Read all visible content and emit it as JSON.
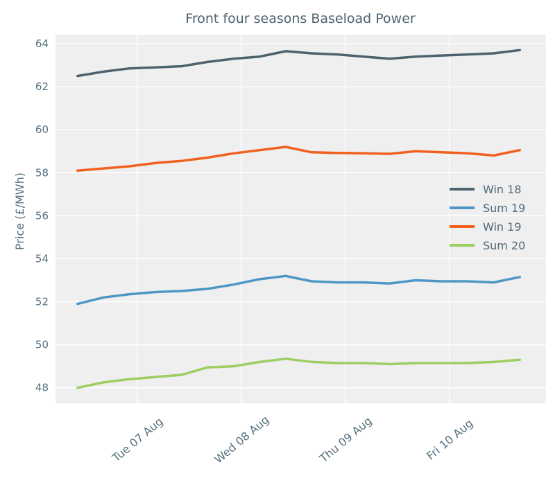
{
  "colors": {
    "background": "#FFFFFF",
    "plot_background": "#EFEFEF",
    "grid": "#FFFFFF",
    "text": "#56717F",
    "title_text": "#4C626F"
  },
  "chart_data": {
    "type": "line",
    "title": "Front four seasons Baseload Power",
    "xlabel": "",
    "ylabel": "Price (£/MWh)",
    "grid": true,
    "legend_position": "center right",
    "y_ticks": [
      48,
      50,
      52,
      54,
      56,
      58,
      60,
      62,
      64
    ],
    "ylim": [
      47.28,
      64.42
    ],
    "xlim_days": [
      -0.787,
      3.927
    ],
    "x_tick_labels": [
      "Tue 07 Aug",
      "Wed 08 Aug",
      "Thu 09 Aug",
      "Fri 10 Aug"
    ],
    "x_tick_positions_days": [
      0,
      1,
      2,
      3
    ],
    "x_days": [
      -0.575,
      -0.325,
      -0.075,
      0.175,
      0.425,
      0.675,
      0.925,
      1.175,
      1.425,
      1.675,
      1.925,
      2.175,
      2.425,
      2.675,
      2.925,
      3.175,
      3.425,
      3.675
    ],
    "series": [
      {
        "name": "Win 18",
        "color": "#4D626E",
        "values": [
          62.5,
          62.7,
          62.85,
          62.9,
          62.95,
          63.15,
          63.3,
          63.4,
          63.65,
          63.55,
          63.5,
          63.4,
          63.3,
          63.4,
          63.45,
          63.5,
          63.55,
          63.7
        ]
      },
      {
        "name": "Sum 19",
        "color": "#4E97C4",
        "values": [
          51.9,
          52.2,
          52.35,
          52.45,
          52.5,
          52.6,
          52.8,
          53.05,
          53.2,
          52.95,
          52.9,
          52.9,
          52.85,
          53.0,
          52.95,
          52.95,
          52.9,
          53.15
        ]
      },
      {
        "name": "Win 19",
        "color": "#F1601E",
        "values": [
          58.1,
          58.2,
          58.3,
          58.45,
          58.55,
          58.7,
          58.9,
          59.05,
          59.2,
          58.95,
          58.92,
          58.9,
          58.88,
          59.0,
          58.95,
          58.9,
          58.8,
          59.05
        ]
      },
      {
        "name": "Sum 20",
        "color": "#9CCE62",
        "values": [
          48.0,
          48.25,
          48.4,
          48.5,
          48.6,
          48.95,
          49.0,
          49.2,
          49.35,
          49.2,
          49.15,
          49.15,
          49.1,
          49.15,
          49.15,
          49.15,
          49.2,
          49.3
        ]
      }
    ]
  }
}
